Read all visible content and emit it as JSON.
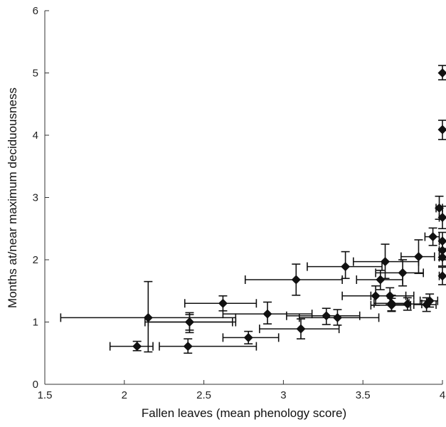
{
  "chart_data": {
    "type": "scatter",
    "title": "",
    "xlabel": "Fallen leaves (mean phenology score)",
    "ylabel": "Months at/near maximum  deciduousness",
    "xlim": [
      1.5,
      4.0
    ],
    "ylim": [
      0,
      6
    ],
    "xticks": [
      "1.5",
      "2",
      "2.5",
      "3",
      "3.5",
      "4"
    ],
    "yticks": [
      "0",
      "1",
      "2",
      "3",
      "4",
      "5",
      "6"
    ],
    "grid": false,
    "legend": "none",
    "marker": "diamond",
    "marker_color": "#111111",
    "points": [
      {
        "x": 2.15,
        "y": 1.07,
        "xerr": [
          1.6,
          2.7
        ],
        "yerr": [
          0.52,
          1.65
        ]
      },
      {
        "x": 2.08,
        "y": 0.61,
        "xerr": [
          1.91,
          2.18
        ],
        "yerr": [
          0.54,
          0.69
        ]
      },
      {
        "x": 2.4,
        "y": 0.61,
        "xerr": [
          2.22,
          2.83
        ],
        "yerr": [
          0.5,
          0.73
        ]
      },
      {
        "x": 2.41,
        "y": 1.0,
        "xerr": [
          2.15,
          2.68
        ],
        "yerr": [
          0.83,
          1.15
        ]
      },
      {
        "x": 2.41,
        "y": 1.0,
        "xerr": [
          2.13,
          2.7
        ],
        "yerr": [
          0.87,
          1.12
        ]
      },
      {
        "x": 2.62,
        "y": 1.3,
        "xerr": [
          2.38,
          2.83
        ],
        "yerr": [
          1.18,
          1.42
        ]
      },
      {
        "x": 2.78,
        "y": 0.75,
        "xerr": [
          2.62,
          2.97
        ],
        "yerr": [
          0.65,
          0.85
        ]
      },
      {
        "x": 2.9,
        "y": 1.13,
        "xerr": [
          2.62,
          3.18
        ],
        "yerr": [
          0.97,
          1.32
        ]
      },
      {
        "x": 3.08,
        "y": 1.68,
        "xerr": [
          2.76,
          3.37
        ],
        "yerr": [
          1.43,
          1.93
        ]
      },
      {
        "x": 3.11,
        "y": 0.89,
        "xerr": [
          2.85,
          3.35
        ],
        "yerr": [
          0.73,
          1.05
        ]
      },
      {
        "x": 3.27,
        "y": 1.1,
        "xerr": [
          3.02,
          3.48
        ],
        "yerr": [
          0.96,
          1.22
        ]
      },
      {
        "x": 3.34,
        "y": 1.07,
        "xerr": [
          3.1,
          3.6
        ],
        "yerr": [
          0.95,
          1.2
        ]
      },
      {
        "x": 3.39,
        "y": 1.89,
        "xerr": [
          3.15,
          3.62
        ],
        "yerr": [
          1.7,
          2.13
        ]
      },
      {
        "x": 3.58,
        "y": 1.42,
        "xerr": [
          3.37,
          3.82
        ],
        "yerr": [
          1.27,
          1.58
        ]
      },
      {
        "x": 3.61,
        "y": 1.68,
        "xerr": [
          3.46,
          3.75
        ],
        "yerr": [
          1.52,
          1.83
        ]
      },
      {
        "x": 3.64,
        "y": 1.97,
        "xerr": [
          3.44,
          3.85
        ],
        "yerr": [
          1.7,
          2.25
        ]
      },
      {
        "x": 3.67,
        "y": 1.42,
        "xerr": [
          3.55,
          3.77
        ],
        "yerr": [
          1.28,
          1.55
        ]
      },
      {
        "x": 3.68,
        "y": 1.3,
        "xerr": [
          3.57,
          3.79
        ],
        "yerr": [
          1.18,
          1.43
        ]
      },
      {
        "x": 3.68,
        "y": 1.27,
        "xerr": [
          3.55,
          3.8
        ],
        "yerr": [
          1.17,
          1.38
        ]
      },
      {
        "x": 3.75,
        "y": 1.79,
        "xerr": [
          3.58,
          3.88
        ],
        "yerr": [
          1.58,
          2.0
        ]
      },
      {
        "x": 3.78,
        "y": 1.29,
        "xerr": [
          3.68,
          3.87
        ],
        "yerr": [
          1.19,
          1.39
        ]
      },
      {
        "x": 3.85,
        "y": 2.05,
        "xerr": [
          3.74,
          3.95
        ],
        "yerr": [
          1.78,
          2.32
        ]
      },
      {
        "x": 3.9,
        "y": 1.28,
        "xerr": [
          3.82,
          3.96
        ],
        "yerr": [
          1.17,
          1.39
        ]
      },
      {
        "x": 3.92,
        "y": 1.34,
        "xerr": [
          3.86,
          3.97
        ],
        "yerr": [
          1.24,
          1.45
        ]
      },
      {
        "x": 3.94,
        "y": 2.37,
        "xerr": [
          3.89,
          3.98
        ],
        "yerr": [
          2.23,
          2.51
        ]
      },
      {
        "x": 3.98,
        "y": 2.83,
        "xerr": [
          3.96,
          4.0
        ],
        "yerr": [
          2.65,
          3.02
        ]
      },
      {
        "x": 4.0,
        "y": 2.68,
        "xerr": [
          3.98,
          4.0
        ],
        "yerr": [
          2.5,
          2.86
        ]
      },
      {
        "x": 4.0,
        "y": 2.3,
        "xerr": [
          3.98,
          4.0
        ],
        "yerr": [
          2.16,
          2.44
        ]
      },
      {
        "x": 4.0,
        "y": 2.15,
        "xerr": [
          3.98,
          4.0
        ],
        "yerr": [
          2.0,
          2.3
        ]
      },
      {
        "x": 4.0,
        "y": 2.04,
        "xerr": [
          3.98,
          4.0
        ],
        "yerr": [
          1.9,
          2.18
        ]
      },
      {
        "x": 4.0,
        "y": 1.74,
        "xerr": [
          3.98,
          4.0
        ],
        "yerr": [
          1.6,
          1.88
        ]
      },
      {
        "x": 4.0,
        "y": 4.09,
        "xerr": [
          4.0,
          4.0
        ],
        "yerr": [
          3.93,
          4.24
        ]
      },
      {
        "x": 4.0,
        "y": 5.0,
        "xerr": [
          4.0,
          4.0
        ],
        "yerr": [
          4.89,
          5.12
        ]
      }
    ]
  }
}
